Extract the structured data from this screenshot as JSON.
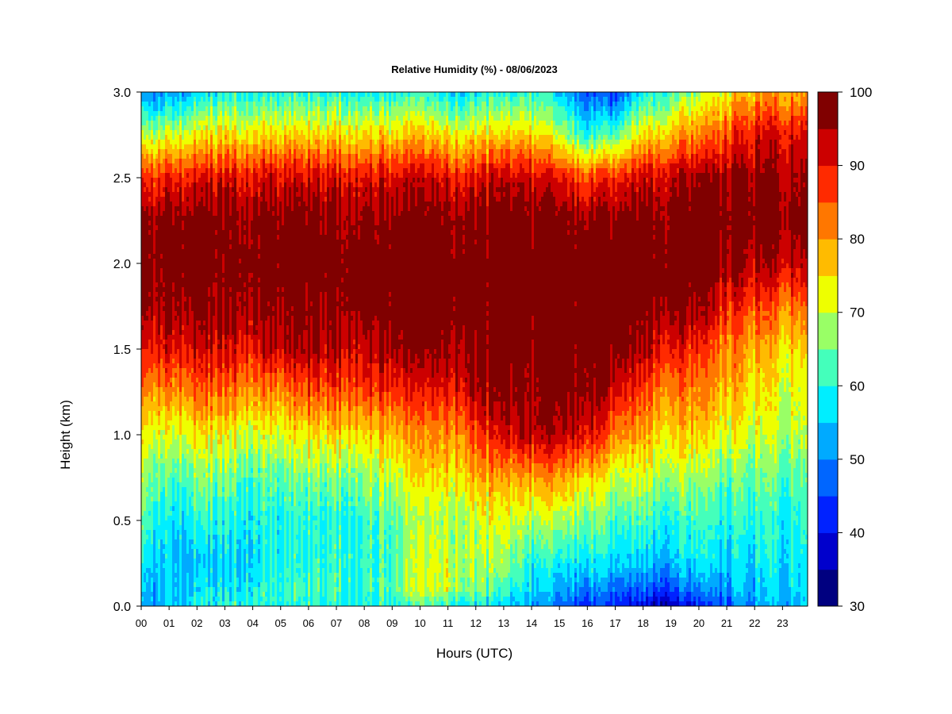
{
  "chart_data": {
    "type": "heatmap",
    "title": "Relative Humidity (%) - 08/06/2023",
    "xlabel": "Hours (UTC)",
    "ylabel": "Height (km)",
    "x_tick_labels": [
      "00",
      "01",
      "02",
      "03",
      "04",
      "05",
      "06",
      "07",
      "08",
      "09",
      "10",
      "11",
      "12",
      "13",
      "14",
      "15",
      "16",
      "17",
      "18",
      "19",
      "20",
      "21",
      "22",
      "23"
    ],
    "xlim": [
      0,
      23.9
    ],
    "y_tick_labels": [
      "0.0",
      "0.5",
      "1.0",
      "1.5",
      "2.0",
      "2.5",
      "3.0"
    ],
    "ylim": [
      0,
      3.0
    ],
    "colorbar": {
      "tick_labels": [
        "30",
        "40",
        "50",
        "60",
        "70",
        "80",
        "90",
        "100"
      ],
      "range": [
        30,
        100
      ],
      "levels": [
        30,
        35,
        40,
        45,
        50,
        55,
        60,
        65,
        70,
        75,
        80,
        85,
        90,
        95,
        100
      ],
      "colors": [
        "#000080",
        "#0000CC",
        "#0022FF",
        "#0066FF",
        "#00AAFF",
        "#00EEFF",
        "#44FFBB",
        "#99FF66",
        "#EEFF00",
        "#FFBB00",
        "#FF7700",
        "#FF2A00",
        "#CC0000",
        "#800000"
      ]
    },
    "z_grid": {
      "hours": [
        0,
        1,
        2,
        3,
        4,
        5,
        6,
        7,
        8,
        9,
        10,
        11,
        12,
        13,
        14,
        15,
        16,
        17,
        18,
        19,
        20,
        21,
        22,
        23,
        23.9
      ],
      "heights_km": [
        0,
        0.1,
        0.25,
        0.5,
        0.75,
        1.0,
        1.25,
        1.5,
        1.75,
        2.0,
        2.25,
        2.5,
        2.75,
        3.0
      ],
      "values": [
        [
          52,
          54,
          58,
          64,
          68,
          74,
          82,
          90,
          96,
          98,
          97,
          88,
          70,
          50
        ],
        [
          56,
          56,
          56,
          58,
          64,
          72,
          82,
          92,
          98,
          100,
          99,
          90,
          72,
          52
        ],
        [
          59,
          56,
          54,
          60,
          66,
          74,
          84,
          92,
          98,
          100,
          99,
          90,
          74,
          56
        ],
        [
          60,
          58,
          56,
          60,
          66,
          74,
          84,
          92,
          98,
          100,
          99,
          92,
          76,
          60
        ],
        [
          61,
          60,
          58,
          60,
          64,
          72,
          82,
          92,
          98,
          100,
          99,
          92,
          76,
          60
        ],
        [
          60,
          62,
          60,
          60,
          64,
          72,
          82,
          94,
          98,
          100,
          99,
          92,
          76,
          60
        ],
        [
          60,
          62,
          60,
          60,
          66,
          74,
          86,
          96,
          98,
          100,
          99,
          92,
          76,
          60
        ],
        [
          60,
          62,
          62,
          60,
          66,
          76,
          86,
          94,
          98,
          100,
          98,
          92,
          76,
          60
        ],
        [
          60,
          62,
          62,
          62,
          68,
          76,
          88,
          94,
          100,
          100,
          98,
          92,
          76,
          60
        ],
        [
          60,
          64,
          62,
          64,
          70,
          78,
          88,
          96,
          100,
          100,
          98,
          92,
          76,
          60
        ],
        [
          62,
          70,
          70,
          68,
          74,
          80,
          88,
          96,
          100,
          100,
          98,
          92,
          76,
          60
        ],
        [
          60,
          70,
          70,
          68,
          74,
          80,
          90,
          96,
          100,
          100,
          98,
          90,
          74,
          56
        ],
        [
          58,
          66,
          68,
          70,
          78,
          86,
          94,
          98,
          100,
          100,
          98,
          90,
          74,
          58
        ],
        [
          54,
          60,
          66,
          70,
          78,
          90,
          96,
          98,
          100,
          100,
          98,
          92,
          74,
          58
        ],
        [
          52,
          56,
          60,
          68,
          80,
          94,
          96,
          98,
          100,
          100,
          98,
          92,
          76,
          60
        ],
        [
          48,
          52,
          58,
          68,
          80,
          94,
          98,
          100,
          100,
          100,
          98,
          90,
          70,
          56
        ],
        [
          44,
          50,
          58,
          66,
          76,
          92,
          98,
          100,
          100,
          100,
          98,
          86,
          60,
          46
        ],
        [
          42,
          48,
          56,
          62,
          70,
          82,
          92,
          98,
          100,
          100,
          98,
          88,
          64,
          44
        ],
        [
          38,
          46,
          54,
          62,
          70,
          78,
          86,
          94,
          98,
          100,
          98,
          92,
          74,
          58
        ],
        [
          36,
          46,
          54,
          60,
          68,
          76,
          82,
          90,
          98,
          100,
          98,
          94,
          78,
          62
        ],
        [
          40,
          48,
          56,
          60,
          66,
          74,
          80,
          86,
          94,
          100,
          99,
          94,
          80,
          66
        ],
        [
          46,
          52,
          56,
          60,
          64,
          72,
          78,
          82,
          90,
          96,
          99,
          96,
          86,
          74
        ],
        [
          50,
          54,
          56,
          60,
          64,
          70,
          74,
          78,
          86,
          94,
          99,
          96,
          90,
          78
        ],
        [
          54,
          56,
          58,
          60,
          64,
          70,
          72,
          76,
          84,
          94,
          99,
          96,
          92,
          80
        ],
        [
          56,
          58,
          58,
          62,
          64,
          70,
          72,
          76,
          84,
          94,
          99,
          96,
          92,
          80
        ]
      ]
    },
    "grid": false
  }
}
